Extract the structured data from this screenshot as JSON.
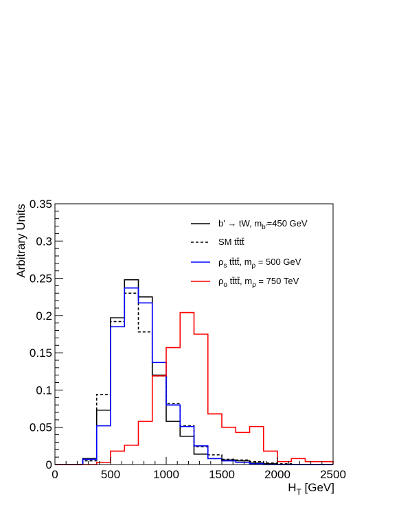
{
  "chart_data": {
    "type": "line",
    "subtype": "step-histogram",
    "xlabel": "H_T [GeV]",
    "xlabel_main": "H",
    "xlabel_sub": "T",
    "xlabel_unit": " [GeV]",
    "ylabel": "Arbitrary Units",
    "xlim": [
      0,
      2500
    ],
    "ylim": [
      0,
      0.35
    ],
    "x_ticks": [
      0,
      500,
      1000,
      1500,
      2000,
      2500
    ],
    "x_tick_labels": [
      "0",
      "500",
      "1000",
      "1500",
      "2000",
      "2500"
    ],
    "y_ticks": [
      0,
      0.05,
      0.1,
      0.15,
      0.2,
      0.25,
      0.3,
      0.35
    ],
    "y_tick_labels": [
      "0",
      "0.05",
      "0.1",
      "0.15",
      "0.2",
      "0.25",
      "0.3",
      "0.35"
    ],
    "bin_edges": [
      0,
      125,
      250,
      375,
      500,
      625,
      750,
      875,
      1000,
      1125,
      1250,
      1375,
      1500,
      1625,
      1750,
      1875,
      2000,
      2125,
      2250,
      2375,
      2500
    ],
    "grid": false,
    "legend_position": "top-right",
    "series": [
      {
        "key": "bprime",
        "color": "#000000",
        "dashed": false,
        "legend": {
          "main": "b' → tW, m",
          "sub": "b'",
          "tail": "=450 GeV"
        },
        "values": [
          0,
          0,
          0.008,
          0.073,
          0.197,
          0.248,
          0.225,
          0.12,
          0.058,
          0.038,
          0.014,
          0.008,
          0.006,
          0.005,
          0.002,
          0.001,
          0,
          0,
          0,
          0
        ]
      },
      {
        "key": "sm",
        "color": "#000000",
        "dashed": true,
        "legend": {
          "main": "SM tt̄tt̄",
          "sub": "",
          "tail": ""
        },
        "values": [
          0,
          0,
          0.005,
          0.094,
          0.192,
          0.23,
          0.178,
          0.119,
          0.082,
          0.052,
          0.024,
          0.013,
          0.007,
          0.006,
          0.004,
          0.002,
          0.001,
          0,
          0,
          0
        ]
      },
      {
        "key": "rho_s",
        "color": "#0000ff",
        "dashed": false,
        "legend": {
          "main": "ρ",
          "sub": "s",
          "tail": "  tt̄tt̄, m",
          "sub2": "ρ",
          "tail2": " = 500 GeV"
        },
        "values": [
          0,
          0,
          0.007,
          0.052,
          0.185,
          0.237,
          0.217,
          0.137,
          0.08,
          0.051,
          0.025,
          0.008,
          0.005,
          0.003,
          0.001,
          0,
          0,
          0,
          0,
          0
        ]
      },
      {
        "key": "rho_o",
        "color": "#ff0000",
        "dashed": false,
        "legend": {
          "main": "ρ",
          "sub": "o",
          "tail": "  tt̄tt̄, m",
          "sub2": "ρ",
          "tail2": " = 750 TeV"
        },
        "values": [
          0,
          0,
          0,
          0.003,
          0.018,
          0.026,
          0.058,
          0.119,
          0.157,
          0.204,
          0.175,
          0.068,
          0.05,
          0.043,
          0.051,
          0.018,
          0.004,
          0.008,
          0.004,
          0.004
        ]
      }
    ]
  }
}
